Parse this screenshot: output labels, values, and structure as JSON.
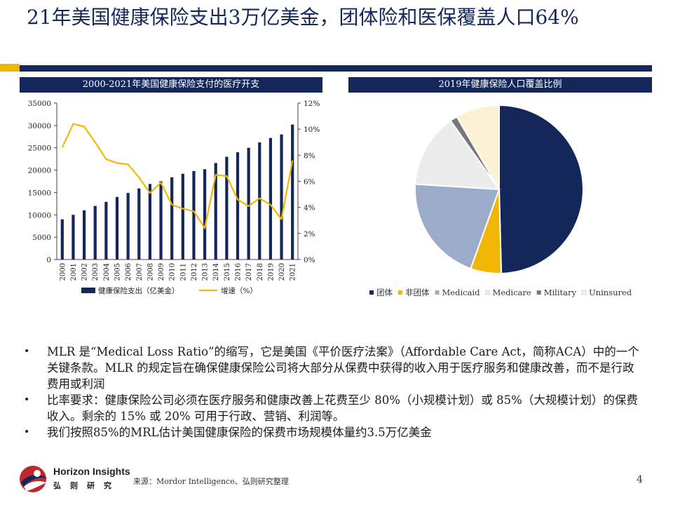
{
  "header": {
    "title": "21年美国健康保险支出3万亿美金，团体险和医保覆盖人口64%"
  },
  "left_panel": {
    "heading": "2000-2021年美国健康保险支付的医疗开支"
  },
  "right_panel": {
    "heading": "2019年健康保险人口覆盖比例"
  },
  "colors": {
    "navy": "#13275a",
    "gold": "#f2b705",
    "light_blue": "#9aacc9",
    "light_gray": "#ececec",
    "dark_gray": "#777777",
    "cream": "#fdf1d3"
  },
  "chart_data": [
    {
      "type": "bar",
      "title": "2000-2021年美国健康保险支付的医疗开支",
      "categories": [
        "2000",
        "2001",
        "2002",
        "2003",
        "2004",
        "2005",
        "2006",
        "2007",
        "2008",
        "2009",
        "2010",
        "2011",
        "2012",
        "2013",
        "2014",
        "2015",
        "2016",
        "2017",
        "2018",
        "2019",
        "2020",
        "2021"
      ],
      "series": [
        {
          "name": "健康保险支出（亿美金）",
          "kind": "bar",
          "axis": "left",
          "values": [
            9000,
            10000,
            11000,
            12000,
            12900,
            14000,
            14900,
            15900,
            16900,
            17500,
            18400,
            19200,
            19800,
            20200,
            21600,
            23000,
            24000,
            25000,
            26200,
            27200,
            28000,
            30200
          ]
        },
        {
          "name": "增速（%）",
          "kind": "line",
          "axis": "right",
          "values": [
            8.6,
            10.4,
            10.2,
            9.0,
            7.7,
            7.4,
            7.3,
            6.3,
            5.1,
            5.9,
            4.2,
            3.9,
            3.7,
            2.4,
            6.5,
            6.4,
            4.6,
            4.1,
            4.7,
            4.2,
            3.1,
            7.6
          ]
        }
      ],
      "y_left": {
        "min": 0,
        "max": 35000,
        "ticks": [
          "0",
          "5000",
          "10000",
          "15000",
          "20000",
          "25000",
          "30000",
          "35000"
        ]
      },
      "y_right": {
        "min": 0,
        "max": 12,
        "ticks": [
          "0%",
          "2%",
          "4%",
          "6%",
          "8%",
          "10%",
          "12%"
        ]
      },
      "legend": [
        "健康保险支出（亿美金）",
        "增速（%）"
      ]
    },
    {
      "type": "pie",
      "title": "2019年健康保险人口覆盖比例",
      "slices": [
        {
          "label": "团体",
          "value": 49.6,
          "color": "#13275a"
        },
        {
          "label": "非团体",
          "value": 5.9,
          "color": "#f2b705"
        },
        {
          "label": "Medicaid",
          "value": 20.5,
          "color": "#9aacc9"
        },
        {
          "label": "Medicare",
          "value": 14.2,
          "color": "#ececec"
        },
        {
          "label": "Military",
          "value": 1.4,
          "color": "#777777"
        },
        {
          "label": "Uninsured",
          "value": 8.4,
          "color": "#fdf1d3"
        }
      ]
    }
  ],
  "bullets": [
    "MLR 是“Medical Loss Ratio”的缩写，它是美国《平价医疗法案》（Affordable Care Act，简称ACA）中的一个关键条款。MLR 的规定旨在确保健康保险公司将大部分从保费中获得的收入用于医疗服务和健康改善，而不是行政费用或利润",
    "比率要求：健康保险公司必须在医疗服务和健康改善上花费至少 80%（小规模计划）或 85%（大规模计划）的保费收入。剩余的 15% 或 20% 可用于行政、营销、利润等。",
    "我们按照85%的MRL估计美国健康保险的保费市场规模体量约3.5万亿美金"
  ],
  "footer": {
    "brand_en": "Horizon Insights",
    "brand_cn": "弘则研究",
    "source": "来源：Mordor Intelligence、弘则研究整理",
    "page": "4"
  }
}
